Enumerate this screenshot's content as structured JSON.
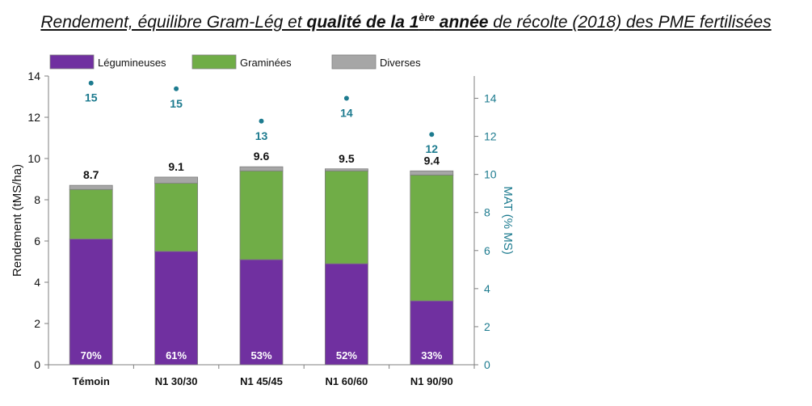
{
  "title": {
    "part1": "Rendement, équilibre Gram-Lég et ",
    "bold1": "qualité de la 1",
    "sup": "ère",
    "bold2": " année",
    "part2": " de récolte (2018) des PME fertilisées"
  },
  "chart_data": {
    "type": "bar",
    "stacked": true,
    "categories": [
      "Témoin",
      "N1 30/30",
      "N1 45/45",
      "N1 60/60",
      "N1 90/90"
    ],
    "series": [
      {
        "name": "Légumineuses",
        "color": "#7030a0",
        "values": [
          6.1,
          5.5,
          5.1,
          4.9,
          3.1
        ]
      },
      {
        "name": "Graminées",
        "color": "#70ad47",
        "values": [
          2.4,
          3.3,
          4.3,
          4.5,
          6.1
        ]
      },
      {
        "name": "Diverses",
        "color": "#a6a6a6",
        "values": [
          0.2,
          0.3,
          0.2,
          0.1,
          0.2
        ]
      }
    ],
    "totals": [
      "8.7",
      "9.1",
      "9.6",
      "9.5",
      "9.4"
    ],
    "legume_share_labels": [
      "70%",
      "61%",
      "53%",
      "52%",
      "33%"
    ],
    "mat": {
      "values": [
        14.8,
        14.5,
        12.8,
        14.0,
        12.1
      ],
      "labels": [
        "15",
        "15",
        "13",
        "14",
        "12"
      ],
      "color": "#1d7b8f"
    },
    "ylabel": "Rendement (tMS/ha)",
    "y2label": "MAT (% MS)",
    "ylim": [
      0,
      14
    ],
    "y2lim": [
      0,
      15.17
    ],
    "yticks": [
      "0",
      "2",
      "4",
      "6",
      "8",
      "10",
      "12",
      "14"
    ],
    "y2ticks": [
      "0",
      "2",
      "4",
      "6",
      "8",
      "10",
      "12",
      "14"
    ],
    "legend_position": "top",
    "grid": false
  }
}
